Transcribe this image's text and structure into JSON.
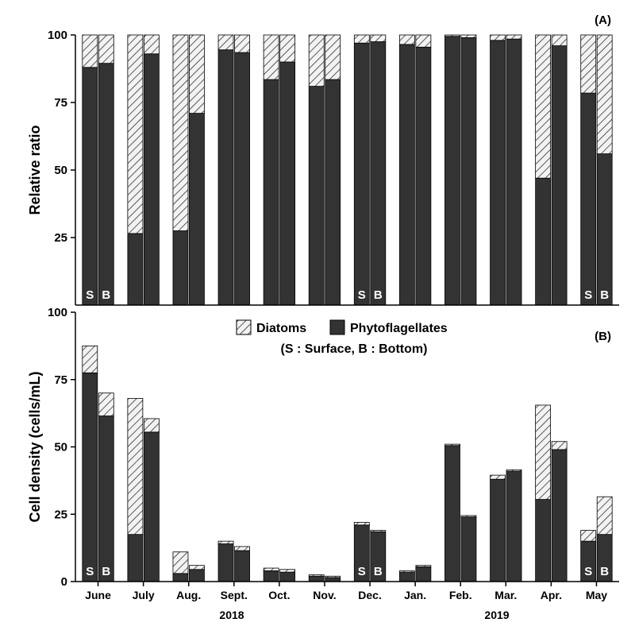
{
  "colors": {
    "phytoflagellates": "#333333",
    "diatoms_hatch": "#1a1a1a",
    "diatoms_bg": "#f2f2f2",
    "axis": "#000000",
    "sb_label": "#ffffff"
  },
  "legend": {
    "diatoms": "Diatoms",
    "phytoflagellates": "Phytoflagellates",
    "note": "(S : Surface, B : Bottom)"
  },
  "months": [
    "June",
    "July",
    "Aug.",
    "Sept.",
    "Oct.",
    "Nov.",
    "Dec.",
    "Jan.",
    "Feb.",
    "Mar.",
    "Apr.",
    "May"
  ],
  "years": [
    "2018",
    "2019"
  ],
  "sb_labels": {
    "surface": "S",
    "bottom": "B"
  },
  "chart_data": [
    {
      "type": "bar",
      "stacked": true,
      "panel_label": "(A)",
      "ylabel": "Relative ratio",
      "ylim": [
        0,
        100
      ],
      "yticks": [
        25,
        50,
        75,
        100
      ],
      "sb_label_months": [
        "June",
        "Dec.",
        "May"
      ],
      "categories": [
        "June",
        "July",
        "Aug.",
        "Sept.",
        "Oct.",
        "Nov.",
        "Dec.",
        "Jan.",
        "Feb.",
        "Mar.",
        "Apr.",
        "May"
      ],
      "series": [
        {
          "name": "Phytoflagellates",
          "surface": [
            88,
            26.5,
            27.5,
            94.5,
            83.5,
            81,
            97,
            96.5,
            99.5,
            98,
            47,
            78.5
          ],
          "bottom": [
            89.5,
            93,
            71,
            93.5,
            90,
            83.5,
            97.5,
            95.5,
            99,
            98.5,
            96,
            56
          ]
        },
        {
          "name": "Diatoms",
          "surface": [
            12,
            73.5,
            72.5,
            5.5,
            16.5,
            19,
            3,
            3.5,
            0.5,
            2,
            53,
            21.5
          ],
          "bottom": [
            10.5,
            7,
            29,
            6.5,
            10,
            16.5,
            2.5,
            4.5,
            1,
            1.5,
            4,
            44
          ]
        }
      ]
    },
    {
      "type": "bar",
      "stacked": true,
      "panel_label": "(B)",
      "ylabel": "Cell density (cells/mL)",
      "ylim": [
        0,
        100
      ],
      "yticks": [
        0,
        25,
        50,
        75,
        100
      ],
      "sb_label_months": [
        "June",
        "Dec.",
        "May"
      ],
      "categories": [
        "June",
        "July",
        "Aug.",
        "Sept.",
        "Oct.",
        "Nov.",
        "Dec.",
        "Jan.",
        "Feb.",
        "Mar.",
        "Apr.",
        "May"
      ],
      "series": [
        {
          "name": "Phytoflagellates",
          "surface": [
            77.5,
            17.5,
            3,
            14,
            4,
            2,
            21,
            3.5,
            50.5,
            38,
            30.5,
            15
          ],
          "bottom": [
            61.5,
            55.5,
            4.5,
            11.5,
            3.5,
            1.5,
            18.5,
            5.5,
            24,
            41,
            49,
            17.5
          ]
        },
        {
          "name": "Diatoms",
          "surface": [
            10,
            50.5,
            8,
            1,
            1,
            0.5,
            1,
            0.5,
            0.5,
            1.5,
            35,
            4
          ],
          "bottom": [
            8.5,
            5,
            1.5,
            1.5,
            1,
            0.5,
            0.5,
            0.5,
            0.5,
            0.5,
            3,
            14
          ]
        }
      ]
    }
  ]
}
